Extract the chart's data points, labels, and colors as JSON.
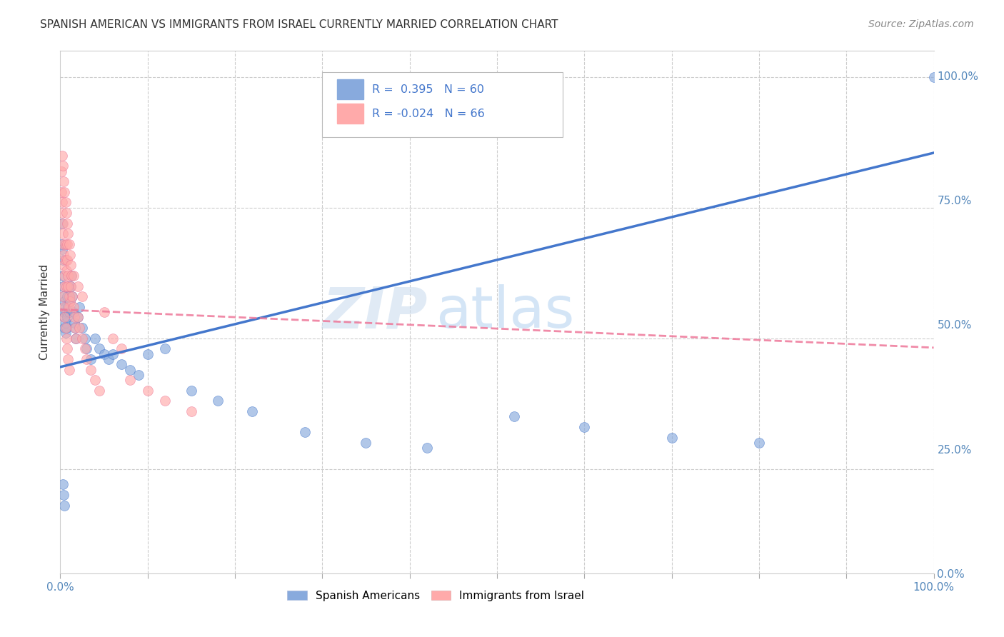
{
  "title": "SPANISH AMERICAN VS IMMIGRANTS FROM ISRAEL CURRENTLY MARRIED CORRELATION CHART",
  "source": "Source: ZipAtlas.com",
  "ylabel": "Currently Married",
  "right_yticks": [
    0.0,
    0.25,
    0.5,
    0.75,
    1.0
  ],
  "right_yticklabels": [
    "0.0%",
    "25.0%",
    "50.0%",
    "75.0%",
    "100.0%"
  ],
  "legend1_label": "R =  0.395   N = 60",
  "legend2_label": "R = -0.024   N = 66",
  "blue_color": "#88AADD",
  "pink_color": "#FFAAAA",
  "blue_line_color": "#4477CC",
  "pink_line_color": "#EE7799",
  "watermark_zip": "ZIP",
  "watermark_atlas": "atlas",
  "xmin": 0.0,
  "xmax": 1.0,
  "ymin": 0.05,
  "ymax": 1.05,
  "blue_line_x0": 0.0,
  "blue_line_y0": 0.445,
  "blue_line_x1": 1.0,
  "blue_line_y1": 0.855,
  "pink_line_x0": 0.0,
  "pink_line_y0": 0.555,
  "pink_line_x1": 1.0,
  "pink_line_y1": 0.482,
  "blue_x": [
    0.001,
    0.002,
    0.002,
    0.003,
    0.003,
    0.003,
    0.004,
    0.004,
    0.005,
    0.005,
    0.005,
    0.006,
    0.006,
    0.006,
    0.007,
    0.007,
    0.008,
    0.008,
    0.009,
    0.009,
    0.01,
    0.01,
    0.011,
    0.012,
    0.013,
    0.014,
    0.015,
    0.016,
    0.017,
    0.018,
    0.02,
    0.022,
    0.025,
    0.028,
    0.03,
    0.035,
    0.04,
    0.045,
    0.05,
    0.055,
    0.06,
    0.07,
    0.08,
    0.09,
    0.1,
    0.12,
    0.15,
    0.18,
    0.22,
    0.28,
    0.35,
    0.42,
    0.52,
    0.6,
    0.7,
    0.8,
    0.003,
    0.004,
    0.005,
    1.0
  ],
  "blue_y": [
    0.68,
    0.72,
    0.67,
    0.65,
    0.62,
    0.6,
    0.58,
    0.55,
    0.57,
    0.54,
    0.52,
    0.56,
    0.53,
    0.51,
    0.55,
    0.52,
    0.58,
    0.54,
    0.6,
    0.56,
    0.58,
    0.55,
    0.57,
    0.6,
    0.62,
    0.58,
    0.55,
    0.53,
    0.52,
    0.5,
    0.54,
    0.56,
    0.52,
    0.5,
    0.48,
    0.46,
    0.5,
    0.48,
    0.47,
    0.46,
    0.47,
    0.45,
    0.44,
    0.43,
    0.47,
    0.48,
    0.4,
    0.38,
    0.36,
    0.32,
    0.3,
    0.29,
    0.35,
    0.33,
    0.31,
    0.3,
    0.22,
    0.2,
    0.18,
    1.0
  ],
  "pink_x": [
    0.001,
    0.001,
    0.002,
    0.002,
    0.003,
    0.003,
    0.003,
    0.004,
    0.004,
    0.005,
    0.005,
    0.006,
    0.006,
    0.007,
    0.007,
    0.008,
    0.008,
    0.009,
    0.009,
    0.01,
    0.01,
    0.011,
    0.012,
    0.013,
    0.014,
    0.015,
    0.016,
    0.017,
    0.018,
    0.02,
    0.022,
    0.025,
    0.028,
    0.03,
    0.035,
    0.04,
    0.045,
    0.05,
    0.06,
    0.07,
    0.08,
    0.1,
    0.12,
    0.15,
    0.003,
    0.004,
    0.005,
    0.006,
    0.007,
    0.008,
    0.009,
    0.01,
    0.002,
    0.003,
    0.004,
    0.005,
    0.006,
    0.007,
    0.008,
    0.009,
    0.01,
    0.011,
    0.012,
    0.015,
    0.02,
    0.025
  ],
  "pink_y": [
    0.82,
    0.78,
    0.76,
    0.74,
    0.72,
    0.7,
    0.68,
    0.66,
    0.64,
    0.62,
    0.6,
    0.68,
    0.65,
    0.63,
    0.6,
    0.68,
    0.65,
    0.62,
    0.6,
    0.58,
    0.56,
    0.57,
    0.6,
    0.62,
    0.58,
    0.56,
    0.54,
    0.52,
    0.5,
    0.54,
    0.52,
    0.5,
    0.48,
    0.46,
    0.44,
    0.42,
    0.4,
    0.55,
    0.5,
    0.48,
    0.42,
    0.4,
    0.38,
    0.36,
    0.58,
    0.56,
    0.54,
    0.52,
    0.5,
    0.48,
    0.46,
    0.44,
    0.85,
    0.83,
    0.8,
    0.78,
    0.76,
    0.74,
    0.72,
    0.7,
    0.68,
    0.66,
    0.64,
    0.62,
    0.6,
    0.58
  ]
}
